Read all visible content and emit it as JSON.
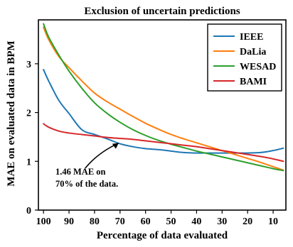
{
  "chart_data": {
    "type": "line",
    "title": "Exclusion of uncertain predictions",
    "xlabel": "Percentage of data evaluated",
    "ylabel": "MAE on evaluated data in BPM",
    "x_reversed": true,
    "xlim": [
      102,
      5
    ],
    "ylim": [
      0,
      3.9
    ],
    "xticks": [
      100,
      90,
      80,
      70,
      60,
      50,
      40,
      30,
      20,
      10
    ],
    "yticks": [
      0,
      1,
      2,
      3
    ],
    "grid": false,
    "legend_position": "top-right",
    "series": [
      {
        "name": "IEEE",
        "color": "#1f77b4",
        "x": [
          100,
          98,
          94,
          90,
          85,
          80,
          75,
          70,
          65,
          60,
          55,
          50,
          45,
          40,
          35,
          30,
          25,
          20,
          15,
          10,
          6
        ],
        "y": [
          2.88,
          2.65,
          2.25,
          1.98,
          1.65,
          1.55,
          1.46,
          1.36,
          1.3,
          1.26,
          1.24,
          1.21,
          1.18,
          1.17,
          1.17,
          1.17,
          1.17,
          1.17,
          1.18,
          1.22,
          1.27
        ]
      },
      {
        "name": "DaLia",
        "color": "#ff7f0e",
        "x": [
          100,
          98,
          94,
          90,
          85,
          80,
          75,
          70,
          65,
          60,
          55,
          50,
          45,
          40,
          35,
          30,
          25,
          20,
          15,
          10,
          6
        ],
        "y": [
          3.75,
          3.5,
          3.15,
          2.92,
          2.65,
          2.4,
          2.22,
          2.07,
          1.92,
          1.78,
          1.66,
          1.55,
          1.46,
          1.38,
          1.3,
          1.22,
          1.14,
          1.06,
          0.98,
          0.89,
          0.82
        ]
      },
      {
        "name": "WESAD",
        "color": "#2ca02c",
        "x": [
          100,
          98,
          94,
          90,
          85,
          80,
          75,
          70,
          65,
          60,
          55,
          50,
          45,
          40,
          35,
          30,
          25,
          20,
          15,
          10,
          6
        ],
        "y": [
          3.82,
          3.55,
          3.18,
          2.85,
          2.5,
          2.2,
          1.98,
          1.8,
          1.65,
          1.53,
          1.43,
          1.35,
          1.28,
          1.21,
          1.15,
          1.09,
          1.03,
          0.97,
          0.91,
          0.85,
          0.81
        ]
      },
      {
        "name": "BAMI",
        "color": "#d62728",
        "x": [
          100,
          98,
          94,
          90,
          85,
          80,
          75,
          70,
          65,
          60,
          55,
          50,
          45,
          40,
          35,
          30,
          25,
          20,
          15,
          10,
          6
        ],
        "y": [
          1.77,
          1.7,
          1.62,
          1.58,
          1.55,
          1.52,
          1.49,
          1.47,
          1.45,
          1.42,
          1.39,
          1.36,
          1.33,
          1.3,
          1.26,
          1.22,
          1.18,
          1.14,
          1.1,
          1.05,
          1.0
        ]
      }
    ],
    "annotation": {
      "lines": [
        "1.46 MAE on",
        "70% of the data."
      ],
      "target": {
        "x": 70,
        "y": 1.46
      }
    }
  }
}
